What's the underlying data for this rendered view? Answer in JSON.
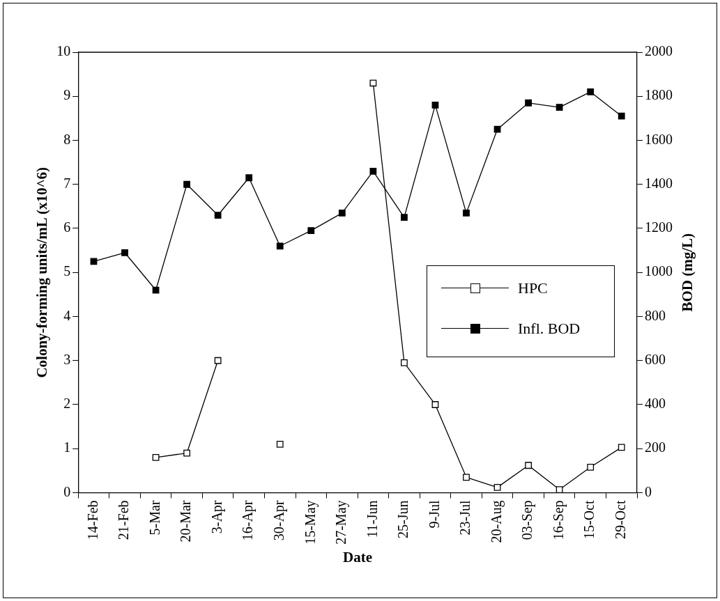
{
  "chart_data": {
    "type": "line",
    "xlabel": "Date",
    "ylabel": "Colony-forming units/mL (x10^6)",
    "y2label": "BOD (mg/L)",
    "categories": [
      "14-Feb",
      "21-Feb",
      "5-Mar",
      "20-Mar",
      "3-Apr",
      "16-Apr",
      "30-Apr",
      "15-May",
      "27-May",
      "11-Jun",
      "25-Jun",
      "9-Jul",
      "23-Jul",
      "20-Aug",
      "03-Sep",
      "16-Sep",
      "15-Oct",
      "29-Oct"
    ],
    "series": [
      {
        "name": "HPC",
        "color": "#000000",
        "values": [
          null,
          null,
          0.8,
          0.9,
          3.0,
          null,
          1.1,
          null,
          null,
          9.3,
          2.95,
          2.0,
          0.35,
          0.12,
          0.62,
          0.07,
          0.58,
          1.03
        ]
      },
      {
        "name": "Infl. BOD",
        "color": "#000000",
        "axis": "y2",
        "values": [
          1050,
          1090,
          920,
          1400,
          1260,
          1430,
          1120,
          1190,
          1270,
          1460,
          1250,
          1760,
          1270,
          1650,
          1770,
          1750,
          1820,
          1710
        ]
      }
    ],
    "ylim": [
      0,
      10
    ],
    "yticks": [
      0,
      1,
      2,
      3,
      4,
      5,
      6,
      7,
      8,
      9,
      10
    ],
    "y2lim": [
      0,
      2000
    ],
    "y2ticks": [
      0,
      200,
      400,
      600,
      800,
      1000,
      1200,
      1400,
      1600,
      1800,
      2000
    ],
    "grid": false,
    "legend": "right",
    "marker": "square",
    "line_style": "solid"
  }
}
